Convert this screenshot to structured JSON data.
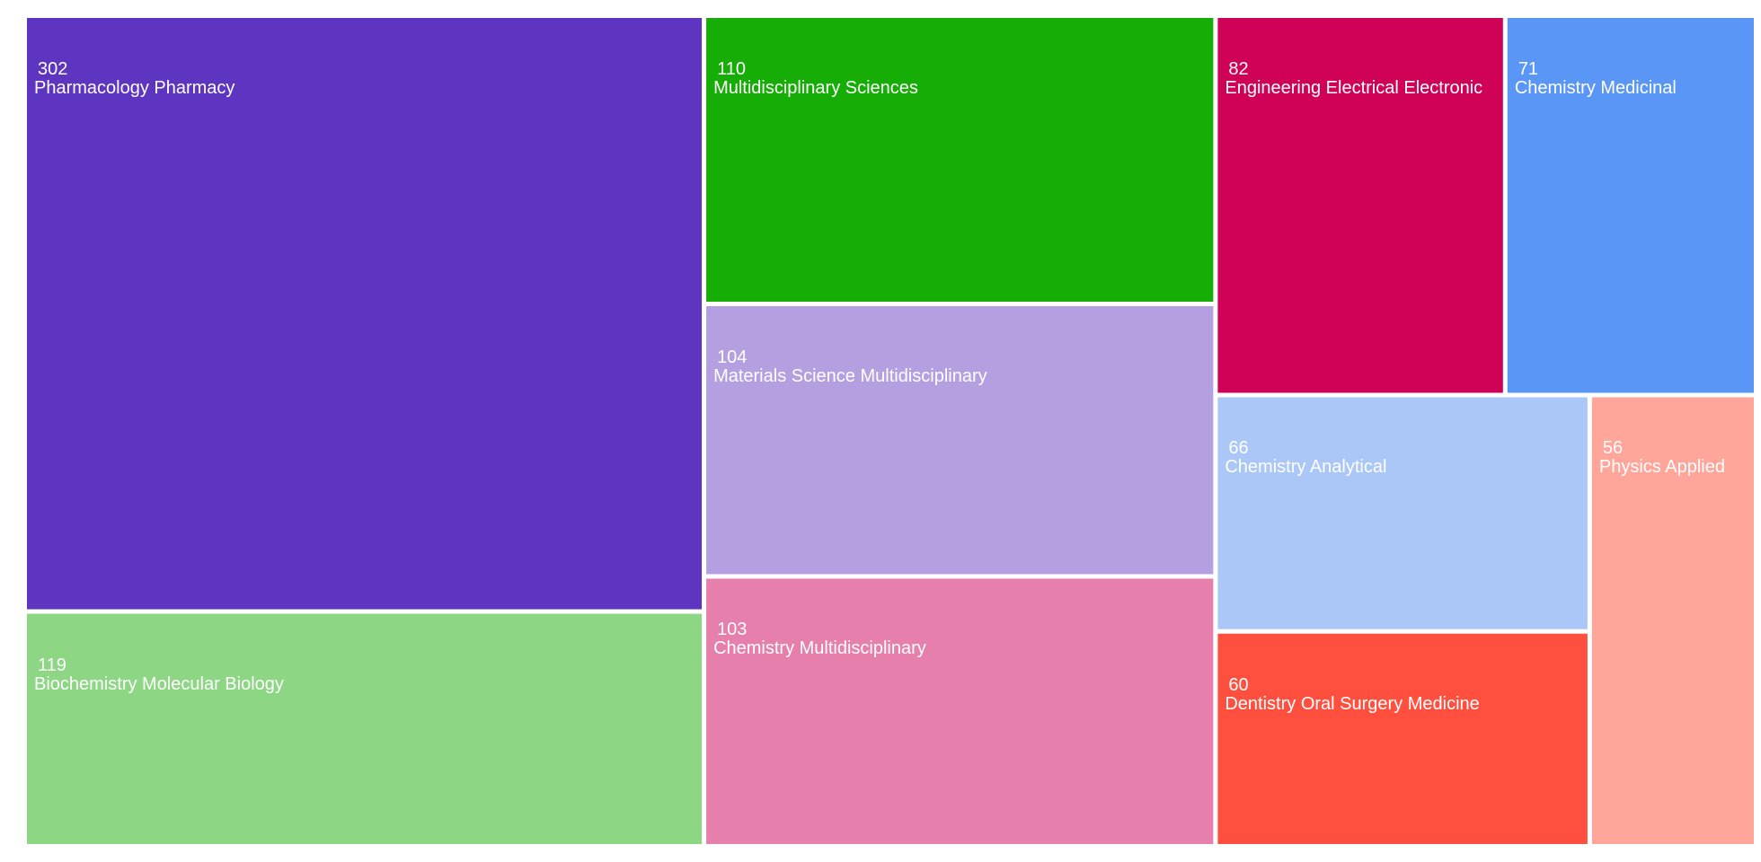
{
  "chart_data": {
    "type": "treemap",
    "categories": [
      "Pharmacology Pharmacy",
      "Biochemistry Molecular Biology",
      "Multidisciplinary Sciences",
      "Materials Science Multidisciplinary",
      "Chemistry Multidisciplinary",
      "Engineering Electrical Electronic",
      "Chemistry Medicinal",
      "Chemistry Analytical",
      "Dentistry Oral Surgery Medicine",
      "Physics Applied"
    ],
    "values": [
      302,
      119,
      110,
      104,
      103,
      82,
      71,
      66,
      60,
      56
    ],
    "colors": [
      "#5e35c1",
      "#8cd684",
      "#16ad06",
      "#b49fe0",
      "#e67fab",
      "#cf0257",
      "#5996f5",
      "#aac7f7",
      "#ff4f3f",
      "#ffa59a"
    ]
  }
}
